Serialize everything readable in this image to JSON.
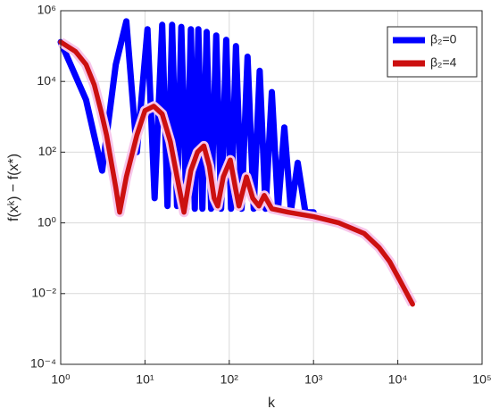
{
  "chart_data": {
    "type": "line",
    "xlabel": "k",
    "ylabel": "f(xᵏ) − f(x*)",
    "xscale": "log",
    "yscale": "log",
    "xlim": [
      1,
      100000
    ],
    "ylim": [
      0.0001,
      1000000
    ],
    "xticks": [
      {
        "value": 1,
        "label": "10⁰"
      },
      {
        "value": 10,
        "label": "10¹"
      },
      {
        "value": 100,
        "label": "10²"
      },
      {
        "value": 1000,
        "label": "10³"
      },
      {
        "value": 10000,
        "label": "10⁴"
      },
      {
        "value": 100000,
        "label": "10⁵"
      }
    ],
    "yticks": [
      {
        "value": 0.0001,
        "label": "10⁻⁴"
      },
      {
        "value": 0.01,
        "label": "10⁻²"
      },
      {
        "value": 1,
        "label": "10⁰"
      },
      {
        "value": 100,
        "label": "10²"
      },
      {
        "value": 10000,
        "label": "10⁴"
      },
      {
        "value": 1000000,
        "label": "10⁶"
      }
    ],
    "grid": true,
    "legend": "upper right",
    "series": [
      {
        "name": "β₂=0",
        "color": "#0000ff",
        "x": [
          1,
          2,
          3.1,
          4.5,
          6,
          8,
          10.7,
          13,
          16,
          18.5,
          21,
          24,
          27,
          31,
          35,
          39,
          43,
          48,
          54,
          61,
          70,
          80,
          92,
          105,
          120,
          140,
          165,
          195,
          230,
          270,
          320,
          380,
          450,
          540,
          650,
          800,
          1000
        ],
        "values": [
          130000,
          3000,
          30,
          30000,
          500000,
          100,
          300000,
          5,
          400000,
          3,
          400000,
          3,
          350000,
          2.5,
          300000,
          2.5,
          300000,
          2.5,
          250000,
          2.5,
          200000,
          2.5,
          150000,
          2.5,
          100000,
          2.5,
          50000,
          2.5,
          20000,
          2.5,
          5000,
          2.5,
          500,
          2.2,
          50,
          2,
          2
        ]
      },
      {
        "name": "β₂=4",
        "color": "#cc1010",
        "x": [
          1,
          1.5,
          2,
          2.5,
          3,
          3.5,
          4,
          4.5,
          5,
          6,
          8,
          10,
          12.7,
          16,
          20,
          24,
          29,
          35,
          42,
          50,
          58,
          66,
          73,
          85,
          103,
          118,
          130,
          145,
          160,
          190,
          225,
          260,
          320,
          500,
          1000,
          2000,
          4000,
          6000,
          8000,
          11000,
          15000
        ],
        "values": [
          130000,
          70000,
          30000,
          8000,
          1500,
          300,
          50,
          10,
          2,
          20,
          300,
          1500,
          2000,
          1200,
          200,
          20,
          2,
          30,
          100,
          150,
          40,
          5,
          3,
          20,
          60,
          10,
          3,
          8,
          20,
          5,
          3,
          6,
          2.5,
          2,
          1.5,
          1,
          0.5,
          0.2,
          0.08,
          0.02,
          0.005
        ]
      }
    ]
  }
}
